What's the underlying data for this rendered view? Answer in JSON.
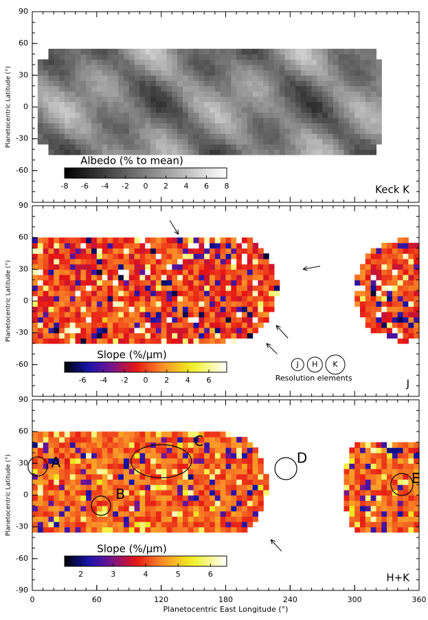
{
  "chart_data": [
    {
      "type": "map",
      "ylabel": "Planetocentric Latitude (°)",
      "xlim": [
        0,
        360
      ],
      "ylim": [
        -90,
        90
      ],
      "yticks": [
        -60,
        -30,
        0,
        30,
        60,
        90
      ],
      "xticks": [],
      "colorbar": {
        "title": "Albedo (% to mean)",
        "lim": [
          -8,
          8
        ],
        "ticks": [
          -8,
          -6,
          -4,
          -2,
          0,
          2,
          4,
          6,
          8
        ],
        "colormap": "gray"
      },
      "label": "Keck K"
    },
    {
      "type": "map",
      "ylabel": "Planetocentric Latitude (°)",
      "xlim": [
        0,
        360
      ],
      "ylim": [
        -90,
        90
      ],
      "yticks": [
        -60,
        -30,
        0,
        30,
        60,
        90
      ],
      "xticks": [],
      "colorbar": {
        "title": "Slope (%/μm)",
        "lim": [
          -7.7,
          7.7
        ],
        "ticks": [
          -6,
          -4,
          -2,
          0,
          2,
          4,
          6
        ],
        "colormap": "rainbow"
      },
      "label": "J",
      "resolution_elements": {
        "labels": [
          "J",
          "H",
          "K"
        ],
        "caption": "Resolution elements"
      }
    },
    {
      "type": "map",
      "ylabel": "Planetocentric Latitude (°)",
      "xlabel": "Planetocentric East Longitude (°)",
      "xlim": [
        0,
        360
      ],
      "ylim": [
        -90,
        90
      ],
      "yticks": [
        -90,
        -60,
        -30,
        0,
        30,
        60,
        90
      ],
      "xticks": [
        0,
        60,
        120,
        180,
        240,
        300,
        360
      ],
      "colorbar": {
        "title": "Slope (%/μm)",
        "lim": [
          1.5,
          6.5
        ],
        "ticks": [
          2,
          3,
          4,
          5,
          6
        ],
        "colormap": "rainbow"
      },
      "label": "H+K",
      "annotations": [
        "A",
        "B",
        "C",
        "D",
        "E"
      ]
    }
  ]
}
